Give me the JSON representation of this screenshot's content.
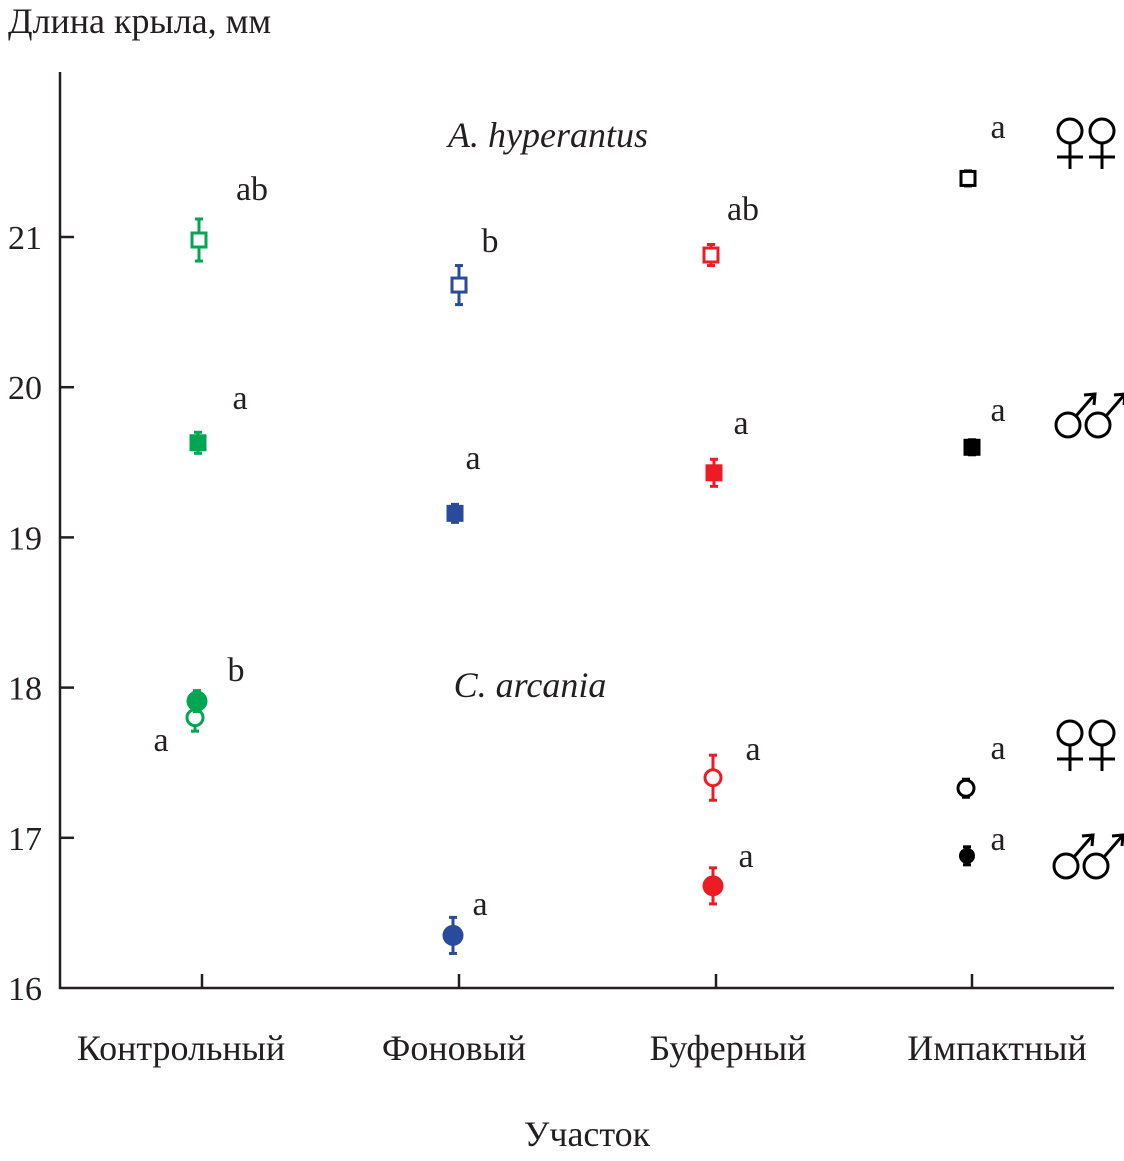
{
  "chart_data": {
    "type": "scatter",
    "title": "",
    "ylabel": "Длина крыла, мм",
    "xlabel": "Участок",
    "ylim": [
      16,
      22
    ],
    "yticks": [
      16,
      17,
      18,
      19,
      20,
      21
    ],
    "grid": false,
    "categories": [
      "Контрольный",
      "Фоновый",
      "Буферный",
      "Импактный"
    ],
    "category_colors": [
      "#00a651",
      "#2a4b9b",
      "#ed1c24",
      "#000000"
    ],
    "species_labels": {
      "a_hyperantus": "A. hyperantus",
      "c_arcania": "C. arcania"
    },
    "sex_symbols": {
      "females": "♀♀",
      "males": "♂♂"
    },
    "series": [
      {
        "name": "A. hyperantus females",
        "marker": "square-open",
        "values": [
          20.98,
          20.68,
          20.88,
          21.39
        ],
        "errors": [
          0.14,
          0.13,
          0.07,
          0.05
        ],
        "letters": [
          "ab",
          "b",
          "ab",
          "a"
        ]
      },
      {
        "name": "A. hyperantus males",
        "marker": "square-filled",
        "values": [
          19.63,
          19.16,
          19.43,
          19.6
        ],
        "errors": [
          0.07,
          0.06,
          0.09,
          0.05
        ],
        "letters": [
          "a",
          "a",
          "a",
          "a"
        ]
      },
      {
        "name": "C. arcania females",
        "marker": "circle-open",
        "values": [
          17.8,
          null,
          17.4,
          17.33
        ],
        "errors": [
          0.09,
          null,
          0.15,
          0.06
        ],
        "letters": [
          "a",
          null,
          "a",
          "a"
        ]
      },
      {
        "name": "C. arcania males",
        "marker": "circle-filled",
        "values": [
          17.91,
          16.35,
          16.68,
          16.88
        ],
        "errors": [
          0.07,
          0.12,
          0.12,
          0.06
        ],
        "letters": [
          "b",
          "a",
          "a",
          "a"
        ]
      }
    ]
  }
}
